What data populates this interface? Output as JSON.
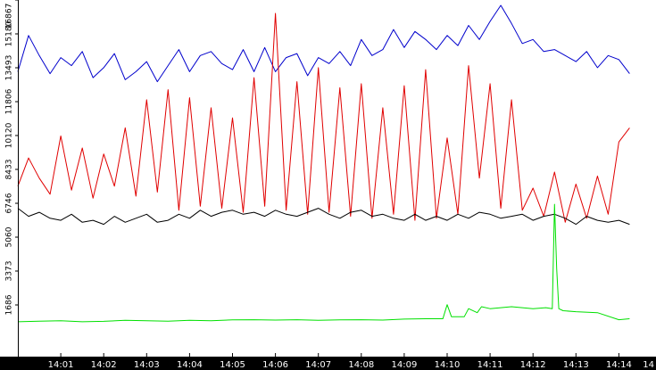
{
  "chart_data": {
    "type": "line",
    "title": "",
    "xlabel": "",
    "ylabel": "",
    "ylim": [
      0,
      16867
    ],
    "xlim": [
      0,
      14.25
    ],
    "y_ticks": [
      1686,
      3373,
      5060,
      6746,
      8433,
      10120,
      11806,
      13493,
      15180,
      16867
    ],
    "y_tick_labels": [
      "1686",
      "3373",
      "5060",
      "6746",
      "8433",
      "10120",
      "11806",
      "13493",
      "15180",
      "16867"
    ],
    "x_ticks": [
      1,
      2,
      3,
      4,
      5,
      6,
      7,
      8,
      9,
      10,
      11,
      12,
      13,
      14,
      14.99
    ],
    "x_tick_labels": [
      "14:01",
      "14:02",
      "14:03",
      "14:04",
      "14:05",
      "14:06",
      "14:07",
      "14:08",
      "14:09",
      "14:10",
      "14:11",
      "14:12",
      "14:13",
      "14:14",
      "14"
    ],
    "grid": false,
    "legend": "none",
    "series": [
      {
        "color": "#0000cc",
        "x": [
          0,
          0.25,
          0.5,
          0.75,
          1,
          1.25,
          1.5,
          1.75,
          2,
          2.25,
          2.5,
          2.75,
          3,
          3.25,
          3.5,
          3.75,
          4,
          4.25,
          4.5,
          4.75,
          5,
          5.25,
          5.5,
          5.75,
          6,
          6.25,
          6.5,
          6.75,
          7,
          7.25,
          7.5,
          7.75,
          8,
          8.25,
          8.5,
          8.75,
          9,
          9.25,
          9.5,
          9.75,
          10,
          10.25,
          10.5,
          10.75,
          11,
          11.25,
          11.5,
          11.75,
          12,
          12.25,
          12.5,
          12.75,
          13,
          13.25,
          13.5,
          13.75,
          14,
          14.25
        ],
        "y": [
          13300,
          15100,
          14100,
          13200,
          14000,
          13600,
          14300,
          13000,
          13500,
          14200,
          12900,
          13300,
          13800,
          12800,
          13600,
          14400,
          13300,
          14100,
          14300,
          13700,
          13400,
          14400,
          13300,
          14500,
          13300,
          14000,
          14200,
          13100,
          14000,
          13700,
          14300,
          13600,
          14900,
          14100,
          14400,
          15400,
          14500,
          15300,
          14900,
          14400,
          15100,
          14600,
          15600,
          14900,
          15800,
          16600,
          15700,
          14700,
          14900,
          14300,
          14400,
          14100,
          13800,
          14300,
          13500,
          14100,
          13900,
          13200
        ]
      },
      {
        "color": "#e00000",
        "x": [
          0,
          0.25,
          0.5,
          0.75,
          1,
          1.25,
          1.5,
          1.75,
          2,
          2.25,
          2.5,
          2.75,
          3,
          3.25,
          3.5,
          3.75,
          4,
          4.25,
          4.5,
          4.75,
          5,
          5.25,
          5.5,
          5.75,
          6,
          6.25,
          6.5,
          6.75,
          7,
          7.25,
          7.5,
          7.75,
          8,
          8.25,
          8.5,
          8.75,
          9,
          9.25,
          9.5,
          9.75,
          10,
          10.25,
          10.5,
          10.75,
          11,
          11.25,
          11.5,
          11.75,
          12,
          12.25,
          12.5,
          12.75,
          13,
          13.25,
          13.5,
          13.75,
          14,
          14.25
        ],
        "y": [
          7600,
          9000,
          8000,
          7200,
          10100,
          7400,
          9500,
          7000,
          9200,
          7600,
          10500,
          7100,
          11900,
          7300,
          12400,
          6400,
          12000,
          6600,
          11500,
          6500,
          11000,
          6300,
          13000,
          6600,
          16200,
          6400,
          12800,
          6200,
          13500,
          6300,
          12500,
          6100,
          12700,
          6000,
          11500,
          6200,
          12600,
          5900,
          13400,
          6000,
          10000,
          6200,
          13600,
          8000,
          12700,
          6500,
          11900,
          6400,
          7500,
          6100,
          8300,
          5800,
          7700,
          6000,
          8100,
          6200,
          9800,
          10500
        ]
      },
      {
        "color": "#000000",
        "x": [
          0,
          0.25,
          0.5,
          0.75,
          1,
          1.25,
          1.5,
          1.75,
          2,
          2.25,
          2.5,
          2.75,
          3,
          3.25,
          3.5,
          3.75,
          4,
          4.25,
          4.5,
          4.75,
          5,
          5.25,
          5.5,
          5.75,
          6,
          6.25,
          6.5,
          6.75,
          7,
          7.25,
          7.5,
          7.75,
          8,
          8.25,
          8.5,
          8.75,
          9,
          9.25,
          9.5,
          9.75,
          10,
          10.25,
          10.5,
          10.75,
          11,
          11.25,
          11.5,
          11.75,
          12,
          12.25,
          12.5,
          12.75,
          13,
          13.25,
          13.5,
          13.75,
          14,
          14.25
        ],
        "y": [
          6500,
          6100,
          6300,
          6000,
          5900,
          6200,
          5800,
          5900,
          5700,
          6100,
          5800,
          6000,
          6200,
          5800,
          5900,
          6200,
          6000,
          6400,
          6100,
          6300,
          6400,
          6200,
          6300,
          6100,
          6400,
          6200,
          6100,
          6300,
          6500,
          6200,
          6000,
          6300,
          6400,
          6100,
          6200,
          6000,
          5900,
          6200,
          5900,
          6100,
          5900,
          6200,
          6000,
          6300,
          6200,
          6000,
          6100,
          6200,
          5900,
          6100,
          6200,
          6000,
          5700,
          6100,
          5900,
          5800,
          5900,
          5700
        ]
      },
      {
        "color": "#00e000",
        "x": [
          0,
          0.5,
          1,
          1.5,
          2,
          2.5,
          3,
          3.5,
          4,
          4.5,
          5,
          5.5,
          6,
          6.5,
          7,
          7.5,
          8,
          8.5,
          9,
          9.5,
          9.9,
          10,
          10.1,
          10.4,
          10.5,
          10.7,
          10.8,
          11,
          11.5,
          12,
          12.3,
          12.45,
          12.5,
          12.55,
          12.6,
          12.7,
          13,
          13.5,
          14,
          14.25
        ],
        "y": [
          850,
          880,
          900,
          850,
          870,
          920,
          900,
          880,
          920,
          900,
          940,
          950,
          930,
          950,
          920,
          940,
          950,
          930,
          980,
          1000,
          1000,
          1700,
          1100,
          1100,
          1500,
          1300,
          1600,
          1500,
          1600,
          1500,
          1550,
          1500,
          6700,
          3500,
          1500,
          1400,
          1350,
          1300,
          950,
          1000
        ]
      }
    ]
  }
}
